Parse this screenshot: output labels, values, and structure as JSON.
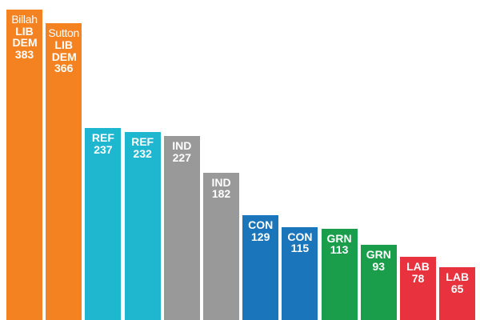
{
  "chart_data": {
    "type": "bar",
    "title": "",
    "xlabel": "",
    "ylabel": "",
    "ylim": [
      0,
      400
    ],
    "grid": false,
    "bars": [
      {
        "name": "Billah",
        "party": "LIB DEM",
        "value": 383,
        "color": "#f58220"
      },
      {
        "name": "Sutton",
        "party": "LIB DEM",
        "value": 366,
        "color": "#f58220"
      },
      {
        "name": "",
        "party": "REF",
        "value": 237,
        "color": "#1fb7d0"
      },
      {
        "name": "",
        "party": "REF",
        "value": 232,
        "color": "#1fb7d0"
      },
      {
        "name": "",
        "party": "IND",
        "value": 227,
        "color": "#999999"
      },
      {
        "name": "",
        "party": "IND",
        "value": 182,
        "color": "#999999"
      },
      {
        "name": "",
        "party": "CON",
        "value": 129,
        "color": "#1b75bb"
      },
      {
        "name": "",
        "party": "CON",
        "value": 115,
        "color": "#1b75bb"
      },
      {
        "name": "",
        "party": "GRN",
        "value": 113,
        "color": "#1a9e4c"
      },
      {
        "name": "",
        "party": "GRN",
        "value": 93,
        "color": "#1a9e4c"
      },
      {
        "name": "",
        "party": "LAB",
        "value": 78,
        "color": "#e8323e"
      },
      {
        "name": "",
        "party": "LAB",
        "value": 65,
        "color": "#e8323e"
      }
    ]
  }
}
